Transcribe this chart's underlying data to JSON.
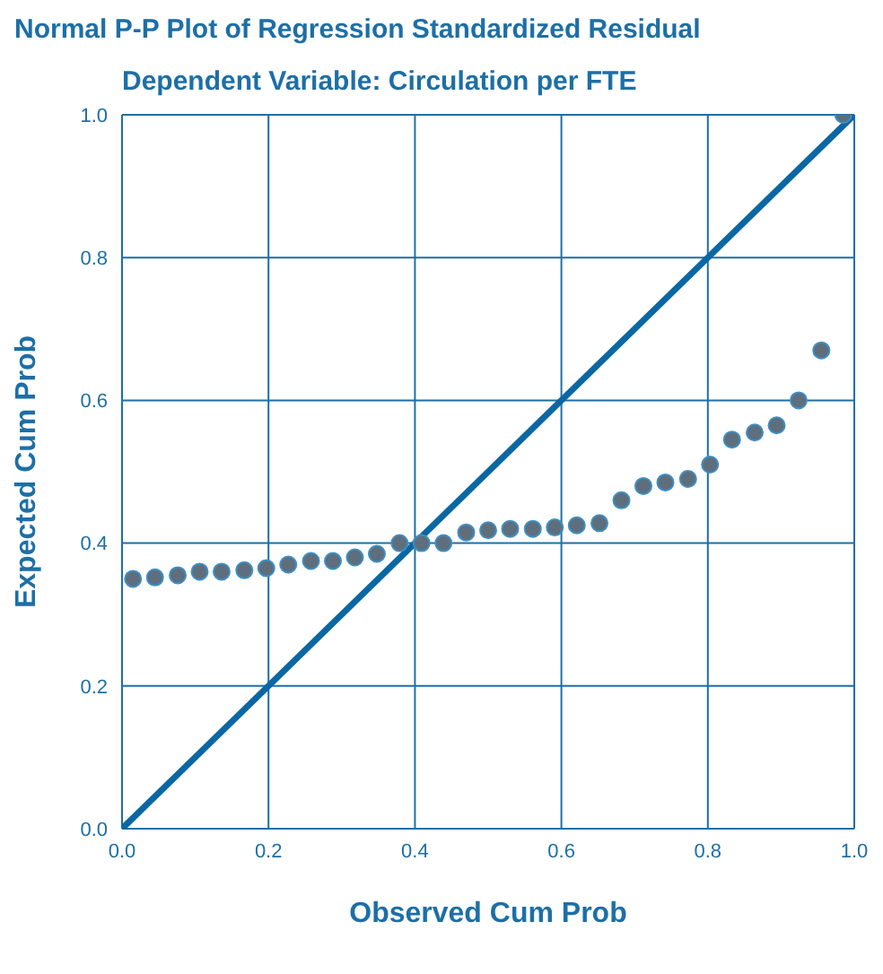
{
  "chart_data": {
    "type": "scatter",
    "title": "Normal P-P Plot of Regression Standardized Residual",
    "subtitle": "Dependent Variable: Circulation per FTE",
    "xlabel": "Observed Cum Prob",
    "ylabel": "Expected Cum Prob",
    "xlim": [
      0,
      1
    ],
    "ylim": [
      0,
      1
    ],
    "xticks": [
      {
        "value": 0,
        "label": "0.0"
      },
      {
        "value": 0.2,
        "label": "0.2"
      },
      {
        "value": 0.4,
        "label": "0.4"
      },
      {
        "value": 0.6,
        "label": "0.6"
      },
      {
        "value": 0.8,
        "label": "0.8"
      },
      {
        "value": 1,
        "label": "1.0"
      }
    ],
    "yticks": [
      {
        "value": 0,
        "label": "0.0"
      },
      {
        "value": 0.2,
        "label": "0.2"
      },
      {
        "value": 0.4,
        "label": "0.4"
      },
      {
        "value": 0.6,
        "label": "0.6"
      },
      {
        "value": 0.8,
        "label": "0.8"
      },
      {
        "value": 1,
        "label": "1.0"
      }
    ],
    "grid": true,
    "legend": false,
    "marker": "circle",
    "series": [
      {
        "type": "line",
        "color": "#0b67a3",
        "marker": "none",
        "x": [
          0,
          1
        ],
        "values": [
          0,
          1
        ]
      },
      {
        "color": "#5e6e7c",
        "x": [
          0.015,
          0.045,
          0.076,
          0.106,
          0.136,
          0.167,
          0.197,
          0.227,
          0.258,
          0.288,
          0.318,
          0.348,
          0.379,
          0.409,
          0.439,
          0.47,
          0.5,
          0.53,
          0.561,
          0.591,
          0.621,
          0.652,
          0.682,
          0.712,
          0.742,
          0.773,
          0.803,
          0.833,
          0.864,
          0.894,
          0.924,
          0.955,
          0.985
        ],
        "values": [
          0.35,
          0.352,
          0.355,
          0.36,
          0.36,
          0.362,
          0.365,
          0.37,
          0.375,
          0.375,
          0.38,
          0.385,
          0.4,
          0.4,
          0.4,
          0.415,
          0.418,
          0.42,
          0.42,
          0.422,
          0.425,
          0.428,
          0.46,
          0.48,
          0.485,
          0.49,
          0.51,
          0.545,
          0.555,
          0.565,
          0.6,
          0.67,
          1.0
        ]
      }
    ]
  }
}
